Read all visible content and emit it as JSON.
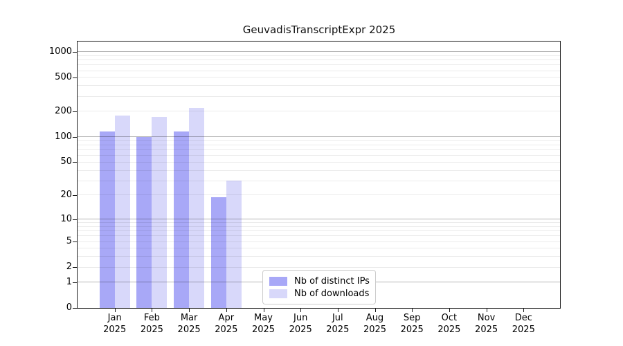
{
  "title": "GeuvadisTranscriptExpr 2025",
  "chart_data": {
    "type": "bar",
    "title": "GeuvadisTranscriptExpr 2025",
    "x_months": [
      "Jan",
      "Feb",
      "Mar",
      "Apr",
      "May",
      "Jun",
      "Jul",
      "Aug",
      "Sep",
      "Oct",
      "Nov",
      "Dec"
    ],
    "x_year": "2025",
    "y_ticks": [
      1000,
      500,
      200,
      100,
      50,
      20,
      10,
      5,
      2,
      1,
      0
    ],
    "y_scale": "log10(1+x)",
    "ylim": [
      0,
      1320
    ],
    "grid": "horizontal, major at 1/10/100/1000, minor at 2-9 per decade, drawn over bars",
    "legend_position": "inside bottom-center",
    "series": [
      {
        "name": "Nb of distinct IPs",
        "color": "#a8a8f7",
        "values": [
          115,
          100,
          116,
          19,
          0,
          0,
          0,
          0,
          0,
          0,
          0,
          0
        ]
      },
      {
        "name": "Nb of downloads",
        "color": "#d8d8fa",
        "values": [
          180,
          172,
          220,
          30,
          0,
          0,
          0,
          0,
          0,
          0,
          0,
          0
        ]
      }
    ]
  },
  "colors": {
    "background": "#ffffff",
    "spine": "#1a1a1a",
    "grid_major": "#b3b3b3",
    "grid_minor": "#ebebeb",
    "legend_border": "#cccccc",
    "text": "#000000"
  }
}
